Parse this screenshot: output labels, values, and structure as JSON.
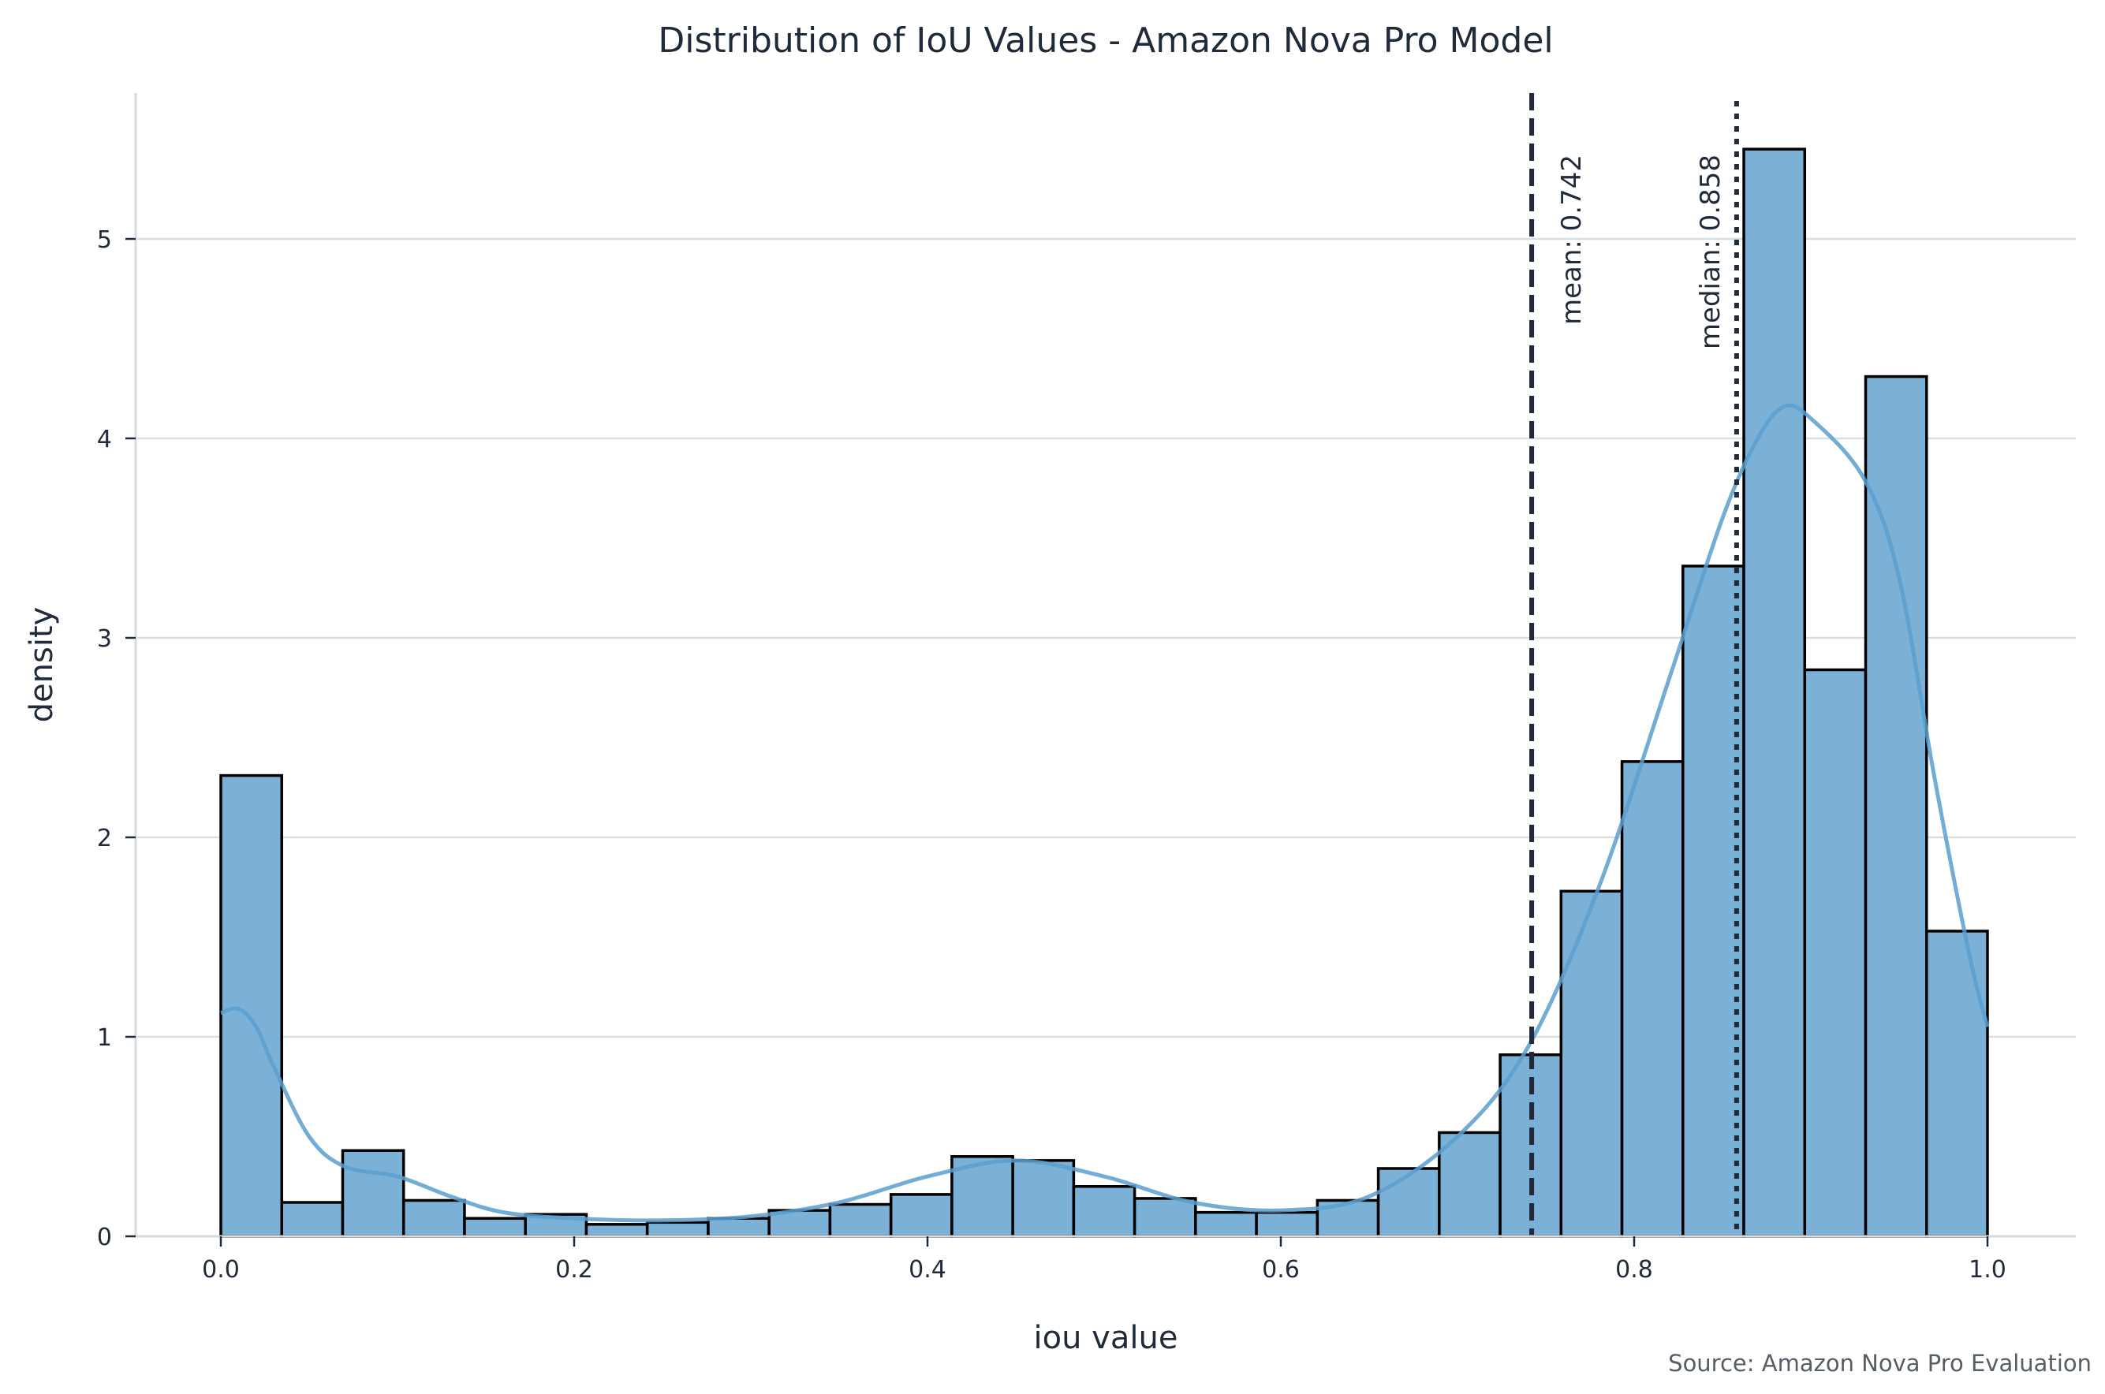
{
  "chart_data": {
    "type": "bar",
    "subtype": "histogram-with-kde",
    "title": "Distribution of IoU Values - Amazon Nova Pro Model",
    "xlabel": "iou value",
    "ylabel": "density",
    "xlim": [
      -0.05,
      1.05
    ],
    "ylim": [
      0,
      5.7
    ],
    "xticks": [
      0.0,
      0.2,
      0.4,
      0.6,
      0.8,
      1.0
    ],
    "xtick_labels": [
      "0.0",
      "0.2",
      "0.4",
      "0.6",
      "0.8",
      "1.0"
    ],
    "yticks": [
      0,
      1,
      2,
      3,
      4,
      5
    ],
    "ytick_labels": [
      "0",
      "1",
      "2",
      "3",
      "4",
      "5"
    ],
    "grid": "horizontal",
    "bin_range": [
      0.0,
      1.0
    ],
    "bin_count": 29,
    "values": [
      2.31,
      0.17,
      0.43,
      0.18,
      0.09,
      0.11,
      0.06,
      0.07,
      0.09,
      0.13,
      0.16,
      0.21,
      0.4,
      0.38,
      0.25,
      0.19,
      0.12,
      0.12,
      0.18,
      0.34,
      0.52,
      0.91,
      1.73,
      2.38,
      3.36,
      5.45,
      2.84,
      4.31,
      1.53
    ],
    "kde": {
      "x": [
        0.0,
        0.01,
        0.02,
        0.03,
        0.05,
        0.07,
        0.1,
        0.13,
        0.16,
        0.2,
        0.25,
        0.3,
        0.35,
        0.4,
        0.45,
        0.5,
        0.55,
        0.6,
        0.65,
        0.7,
        0.74,
        0.78,
        0.82,
        0.85,
        0.87,
        0.885,
        0.9,
        0.93,
        0.95,
        0.97,
        0.99,
        1.0
      ],
      "y": [
        1.12,
        1.14,
        1.05,
        0.85,
        0.5,
        0.35,
        0.3,
        0.2,
        0.12,
        0.09,
        0.08,
        0.1,
        0.17,
        0.3,
        0.38,
        0.3,
        0.17,
        0.13,
        0.2,
        0.5,
        0.95,
        1.75,
        2.8,
        3.6,
        4.0,
        4.16,
        4.1,
        3.8,
        3.3,
        2.3,
        1.4,
        1.05
      ]
    },
    "series": [
      {
        "name": "histogram",
        "color": "#6aaad3"
      },
      {
        "name": "kde",
        "color": "#5a9fcf"
      }
    ],
    "reference_lines": [
      {
        "name": "mean",
        "value": 0.742,
        "label": "mean: 0.742",
        "style": "dashed"
      },
      {
        "name": "median",
        "value": 0.858,
        "label": "median: 0.858",
        "style": "dotted"
      }
    ],
    "source": "Source: Amazon Nova Pro Evaluation"
  },
  "colors": {
    "bar_fill": "#7bb1d6",
    "bar_edge": "#000000",
    "kde": "#5a9fcf",
    "text": "#1f2a3a",
    "grid": "#dcdfe2",
    "ref_line": "#1f2a3a"
  }
}
